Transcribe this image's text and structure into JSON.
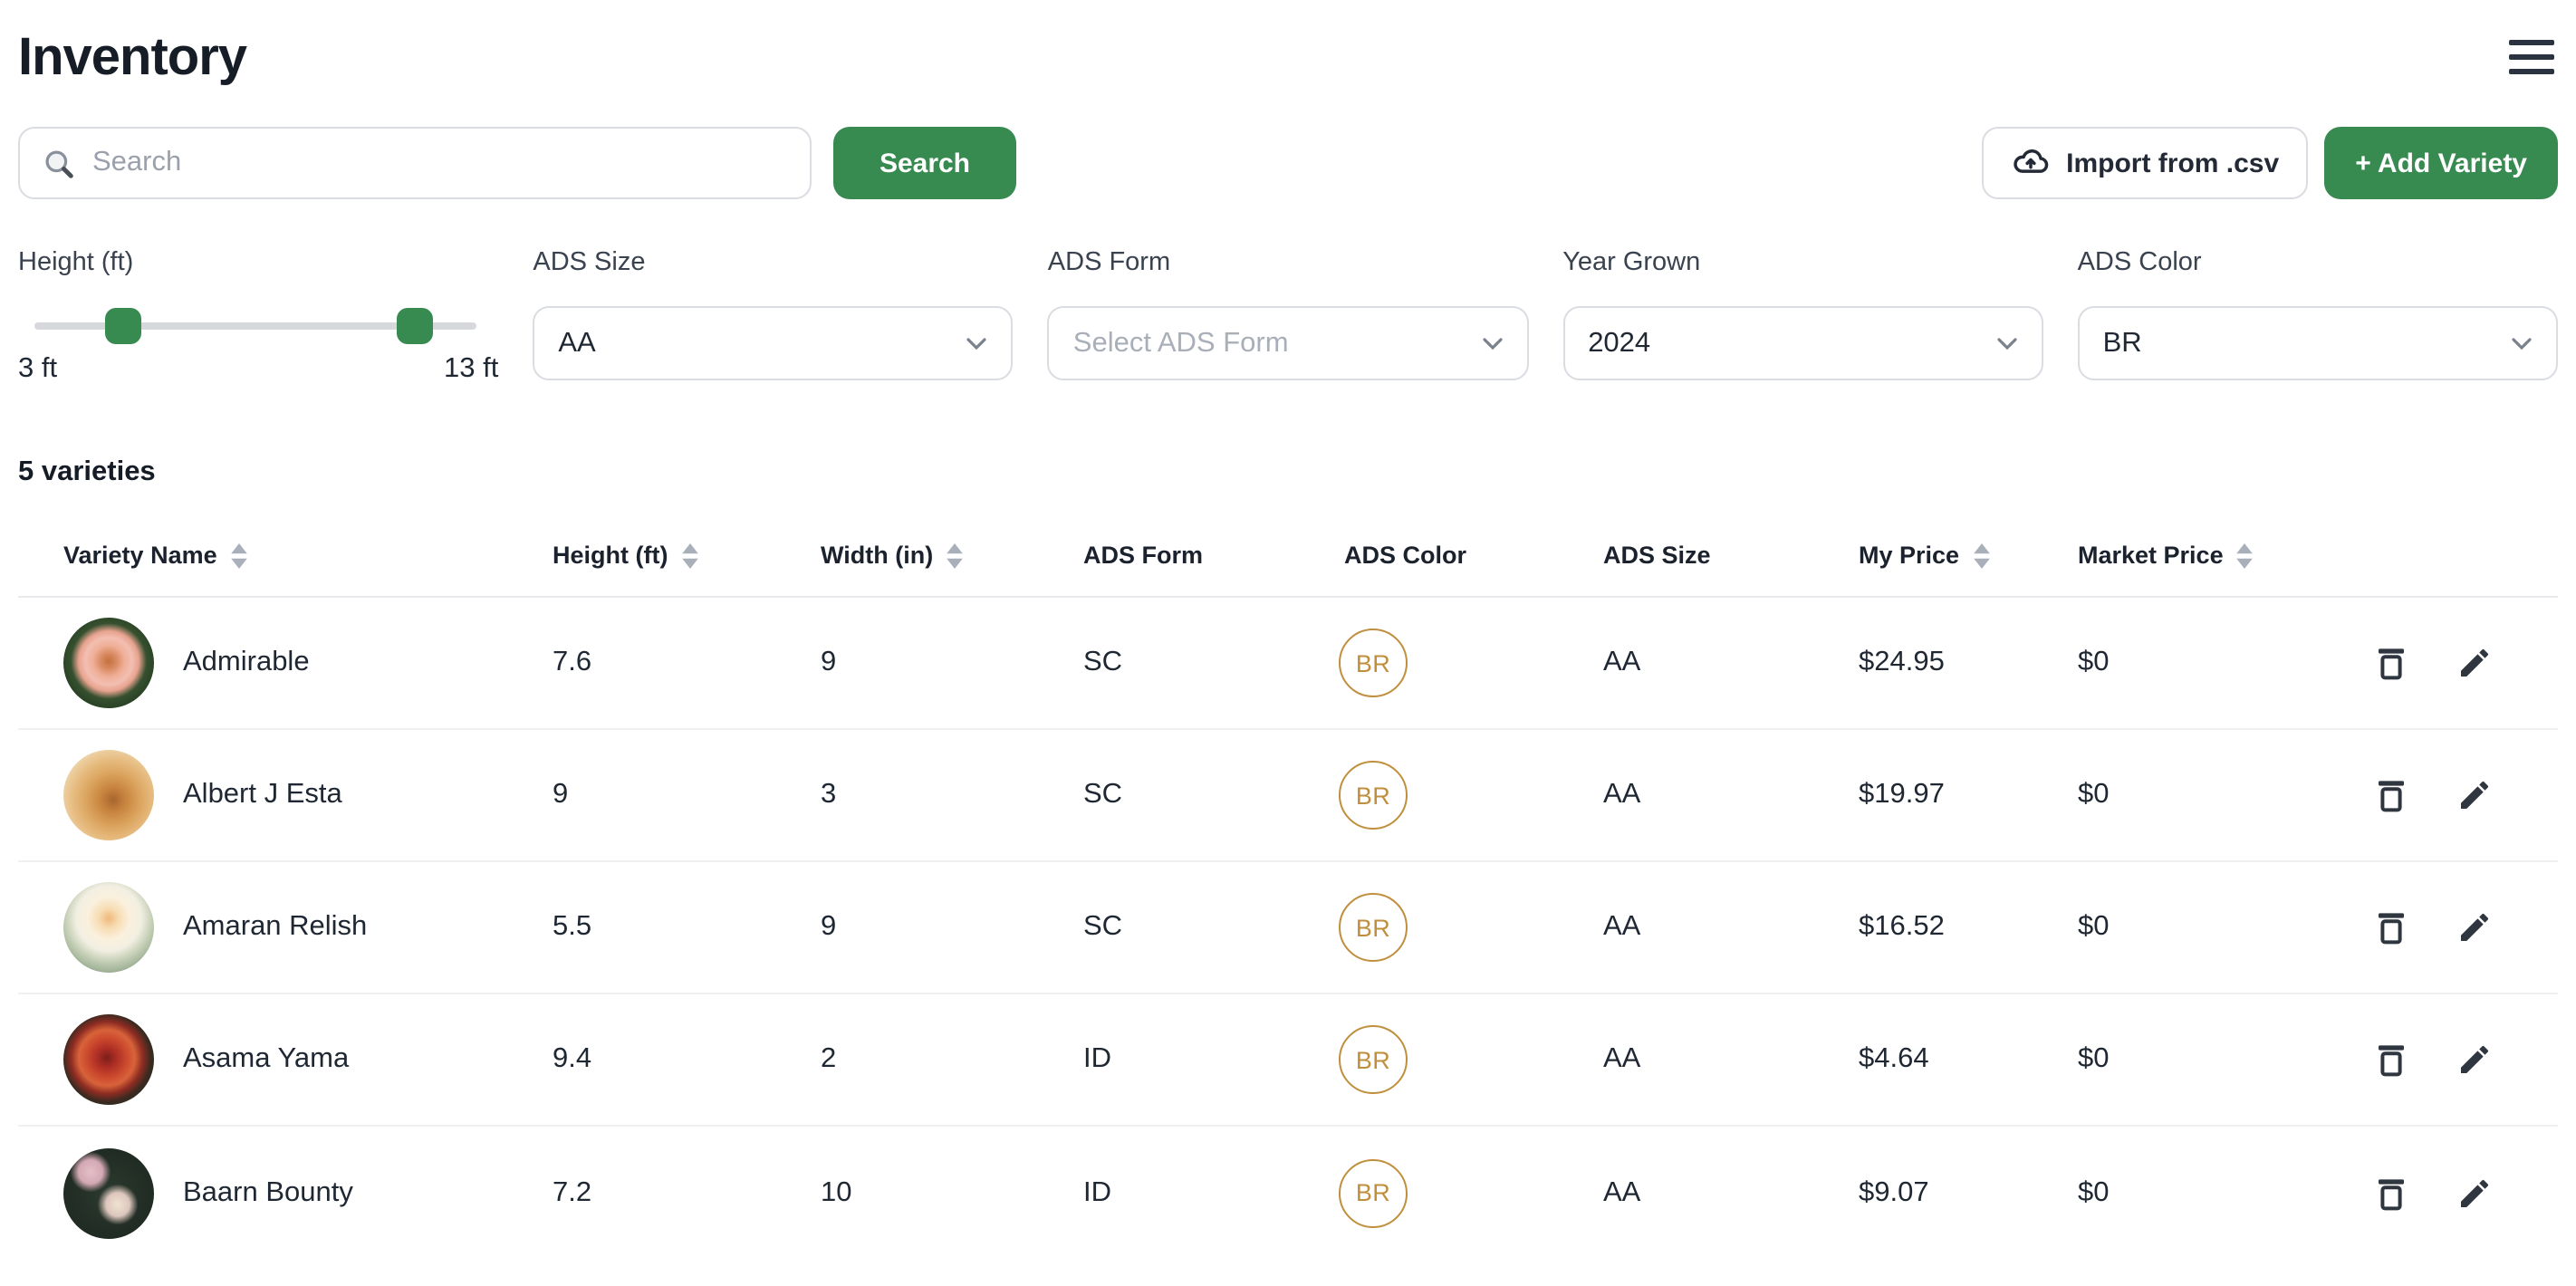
{
  "page": {
    "title": "Inventory"
  },
  "colors": {
    "green": "#388B50",
    "badge_gold": "#C08F3D"
  },
  "toolbar": {
    "search_placeholder": "Search",
    "search_button": "Search",
    "import_button": "Import from .csv",
    "add_button": "+ Add Variety"
  },
  "filters": {
    "height": {
      "label": "Height (ft)",
      "min_label": "3 ft",
      "max_label": "13 ft",
      "handle_left_pct": 20,
      "handle_right_pct": 86
    },
    "ads_size": {
      "label": "ADS Size",
      "value": "AA"
    },
    "ads_form": {
      "label": "ADS Form",
      "placeholder": "Select ADS Form"
    },
    "year_grown": {
      "label": "Year Grown",
      "value": "2024"
    },
    "ads_color": {
      "label": "ADS Color",
      "value": "BR"
    }
  },
  "summary": {
    "count_text": "5 varieties"
  },
  "table": {
    "headers": [
      {
        "label": "Variety Name",
        "sortable": true
      },
      {
        "label": "Height (ft)",
        "sortable": true
      },
      {
        "label": "Width (in)",
        "sortable": true
      },
      {
        "label": "ADS Form",
        "sortable": false
      },
      {
        "label": "ADS Color",
        "sortable": false
      },
      {
        "label": "ADS Size",
        "sortable": false
      },
      {
        "label": "My Price",
        "sortable": true
      },
      {
        "label": "Market Price",
        "sortable": true
      }
    ],
    "rows": [
      {
        "name": "Admirable",
        "height": "7.6",
        "width": "9",
        "form": "SC",
        "color": "BR",
        "size": "AA",
        "my_price": "$24.95",
        "market_price": "$0",
        "avatar_bg": "radial-gradient(circle at 50% 48%, #c4703f 0%, #d98a62 12%, #efae96 24%, #f3bfb2 36%, #e7a28e 46%, #35502f 58%, #24391f 80%, #1d2f1a 100%)"
      },
      {
        "name": "Albert J Esta",
        "height": "9",
        "width": "3",
        "form": "SC",
        "color": "BR",
        "size": "AA",
        "my_price": "$19.97",
        "market_price": "$0",
        "avatar_bg": "radial-gradient(circle at 55% 55%, #a8652f 0%, #c8853f 18%, #dba45e 38%, #e7bd82 58%, #eed3a9 74%, #e3d7c0 88%, #cfc9ba 100%)"
      },
      {
        "name": "Amaran Relish",
        "height": "5.5",
        "width": "9",
        "form": "SC",
        "color": "BR",
        "size": "AA",
        "my_price": "$16.52",
        "market_price": "$0",
        "avatar_bg": "radial-gradient(circle at 50% 40%, #f0b87c 0%, #f7dcb2 14%, #faf0dd 30%, #f2efe2 46%, #c2cdb4 62%, #93a88c 80%, #7e9a7f 100%)"
      },
      {
        "name": "Asama Yama",
        "height": "9.4",
        "width": "2",
        "form": "ID",
        "color": "BR",
        "size": "AA",
        "my_price": "$4.64",
        "market_price": "$0",
        "avatar_bg": "radial-gradient(circle at 48% 48%, #7d1d1a 0%, #b03026 16%, #cc4a2d 30%, #d8633a 42%, #8e2c22 54%, #3a2a20 66%, #272a1e 84%, #1f2418 100%)"
      },
      {
        "name": "Baarn Bounty",
        "height": "7.2",
        "width": "10",
        "form": "ID",
        "color": "BR",
        "size": "AA",
        "my_price": "$9.07",
        "market_price": "$0",
        "avatar_bg": "radial-gradient(circle at 30% 26%, #e3bfc8 0%, #d3a8b4 13%, rgba(40,52,42,0) 22%), radial-gradient(circle at 60% 62%, #efe3d2 0%, #ddc6bd 15%, rgba(40,52,42,0) 26%), radial-gradient(circle, #2c3a2f 0%, #202b23 70%, #19231c 100%)"
      }
    ]
  }
}
